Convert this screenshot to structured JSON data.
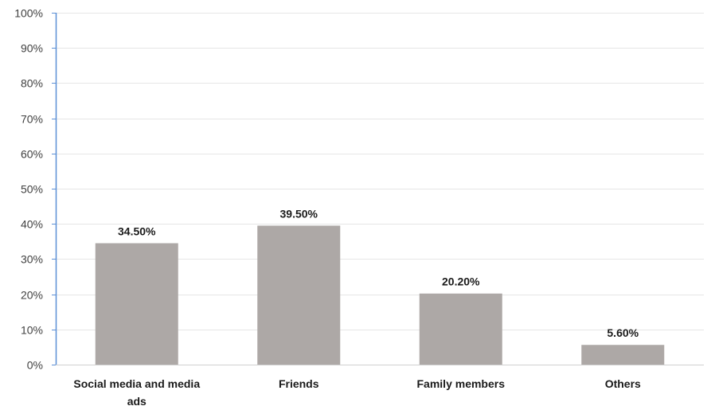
{
  "chart_data": {
    "type": "bar",
    "title": "",
    "xlabel": "",
    "ylabel": "",
    "categories": [
      "Social media and media ads",
      "Friends",
      "Family members",
      "Others"
    ],
    "category_label_lines": [
      [
        "Social media and media",
        "ads"
      ],
      [
        "Friends"
      ],
      [
        "Family members"
      ],
      [
        "Others"
      ]
    ],
    "values": [
      34.5,
      39.5,
      20.2,
      5.6
    ],
    "data_labels": [
      "34.50%",
      "39.50%",
      "20.20%",
      "5.60%"
    ],
    "ylim": [
      0,
      100
    ],
    "y_ticks": [
      0,
      10,
      20,
      30,
      40,
      50,
      60,
      70,
      80,
      90,
      100
    ],
    "y_tick_labels": [
      "0%",
      "10%",
      "20%",
      "30%",
      "40%",
      "50%",
      "60%",
      "70%",
      "80%",
      "90%",
      "100%"
    ],
    "grid": true,
    "legend": "none",
    "colors": {
      "bar": "#ada8a6",
      "grid": "#e6e6e6",
      "axis": "#5b8fd6",
      "baseline": "#d0d0d0"
    }
  }
}
